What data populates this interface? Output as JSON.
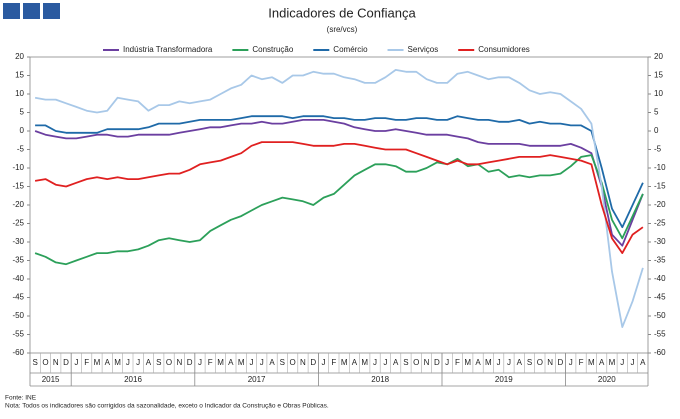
{
  "chart_data": {
    "type": "line",
    "title": "Indicadores de Confiança",
    "subtitle": "(sre/vcs)",
    "categories": [
      "S",
      "O",
      "N",
      "D",
      "J",
      "F",
      "M",
      "A",
      "M",
      "J",
      "J",
      "A",
      "S",
      "O",
      "N",
      "D",
      "J",
      "F",
      "M",
      "A",
      "M",
      "J",
      "J",
      "A",
      "S",
      "O",
      "N",
      "D",
      "J",
      "F",
      "M",
      "A",
      "M",
      "J",
      "J",
      "A",
      "S",
      "O",
      "N",
      "D",
      "J",
      "F",
      "M",
      "A",
      "M",
      "J",
      "J",
      "A",
      "S",
      "O",
      "N",
      "D",
      "J",
      "F",
      "M",
      "A",
      "M",
      "J",
      "J",
      "A"
    ],
    "years": [
      "2015",
      "2016",
      "2017",
      "2018",
      "2019",
      "2020"
    ],
    "ylim": [
      -60,
      20
    ],
    "yticks": [
      -60,
      -55,
      -50,
      -45,
      -40,
      -35,
      -30,
      -25,
      -20,
      -15,
      -10,
      -5,
      0,
      5,
      10,
      15,
      20
    ],
    "grid": false,
    "series": [
      {
        "name": "Indústria Transformadora",
        "color": "#6b3fa0",
        "values": [
          0,
          -1,
          -1.5,
          -2,
          -2,
          -1.5,
          -1,
          -1,
          -1.5,
          -1.5,
          -1,
          -1,
          -1,
          -1,
          -0.5,
          0,
          0.5,
          1,
          1,
          1.5,
          2,
          2,
          2.5,
          2,
          2,
          2.5,
          3,
          3,
          3,
          2.5,
          2,
          1,
          0.5,
          0,
          0,
          0.5,
          0,
          -0.5,
          -1,
          -1,
          -1,
          -1.5,
          -2,
          -3,
          -3.5,
          -3.5,
          -3.5,
          -3.5,
          -4,
          -4,
          -4,
          -4,
          -3.5,
          -4.5,
          -6,
          -15,
          -28,
          -31,
          -24,
          -17
        ]
      },
      {
        "name": "Construção",
        "color": "#2ca05a",
        "values": [
          -33,
          -34,
          -35.5,
          -36,
          -35,
          -34,
          -33,
          -33,
          -32.5,
          -32.5,
          -32,
          -31,
          -29.5,
          -29,
          -29.5,
          -30,
          -29.5,
          -27,
          -25.5,
          -24,
          -23,
          -21.5,
          -20,
          -19,
          -18,
          -18.5,
          -19,
          -20,
          -18,
          -17,
          -14.5,
          -12,
          -10.5,
          -9,
          -9,
          -9.5,
          -11,
          -11,
          -10,
          -8.5,
          -9,
          -7.5,
          -9.5,
          -9,
          -11,
          -10.5,
          -12.5,
          -12,
          -12.5,
          -12,
          -12,
          -11.5,
          -9.5,
          -7,
          -6.5,
          -14,
          -24,
          -29,
          -23,
          -17
        ]
      },
      {
        "name": "Comércio",
        "color": "#1f6aa8",
        "values": [
          1.5,
          1.5,
          0,
          -0.5,
          -0.5,
          -0.5,
          -0.5,
          0.5,
          0.5,
          0.5,
          0.5,
          1,
          2,
          2,
          2,
          2.5,
          3,
          3,
          3,
          3,
          3.5,
          4,
          4,
          4,
          4,
          3.5,
          4,
          4,
          4,
          3.5,
          3.5,
          3,
          3,
          3.5,
          3.5,
          3,
          3,
          3.5,
          3.5,
          3,
          3,
          4,
          3.5,
          3,
          3,
          2.5,
          2.5,
          3,
          2,
          2.5,
          2,
          2,
          1.5,
          1.5,
          0,
          -10,
          -21,
          -26,
          -20,
          -14
        ]
      },
      {
        "name": "Serviços",
        "color": "#a8c8e8",
        "values": [
          9,
          8.5,
          8.5,
          7.5,
          6.5,
          5.5,
          5,
          5.5,
          9,
          8.5,
          8,
          5.5,
          7,
          7,
          8,
          7.5,
          8,
          8.5,
          10,
          11.5,
          12.5,
          15,
          14,
          14.5,
          13,
          15,
          15,
          16,
          15.5,
          15.5,
          14.5,
          14,
          13,
          13,
          14.5,
          16.5,
          16,
          16,
          14,
          13,
          13,
          15.5,
          16,
          15,
          14,
          14.5,
          14.5,
          13,
          11,
          10,
          10.5,
          10,
          8,
          6,
          2,
          -15,
          -38,
          -53,
          -46,
          -37
        ]
      },
      {
        "name": "Consumidores",
        "color": "#e02020",
        "values": [
          -13.5,
          -13,
          -14.5,
          -15,
          -14,
          -13,
          -12.5,
          -13,
          -12.5,
          -13,
          -13,
          -12.5,
          -12,
          -11.5,
          -11.5,
          -10.5,
          -9,
          -8.5,
          -8,
          -7,
          -6,
          -4,
          -3,
          -3,
          -3,
          -3,
          -3.5,
          -4,
          -4,
          -4,
          -3.5,
          -3.5,
          -4,
          -4.5,
          -5,
          -5,
          -5,
          -6,
          -7,
          -8,
          -9,
          -8,
          -9,
          -9,
          -8.5,
          -8,
          -7.5,
          -7,
          -7,
          -7,
          -6.5,
          -7,
          -7.5,
          -8,
          -9,
          -20,
          -29,
          -33,
          -28,
          -26
        ]
      }
    ],
    "source": "Fonte: INE",
    "note": "Nota: Todos os indicadores são corrigidos da sazonalidade, exceto o Indicador da Construção e Obras Públicas."
  }
}
